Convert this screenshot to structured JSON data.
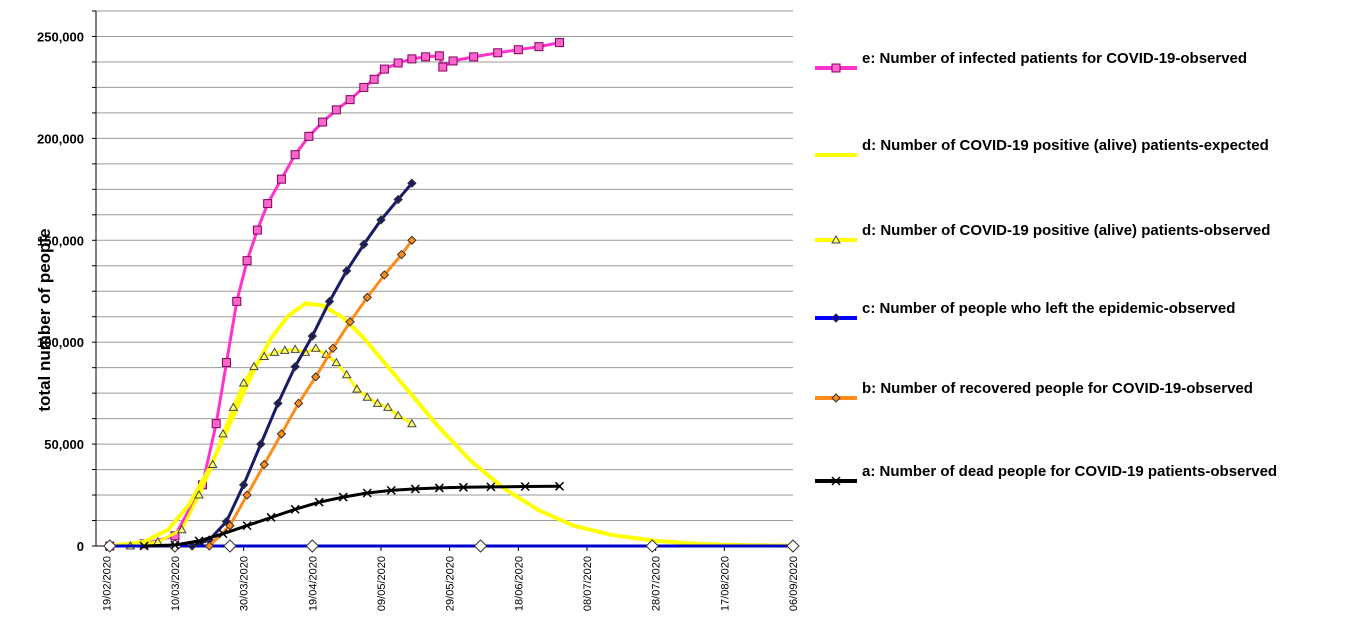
{
  "chart_data": {
    "type": "line",
    "xlabel": "",
    "ylabel": "total number of people",
    "ylim": [
      0,
      262500
    ],
    "xlim": [
      "2020-02-16",
      "2020-09-06"
    ],
    "grid": true,
    "legend_position": "right",
    "x_ticks": [
      "19/02/2020",
      "10/03/2020",
      "30/03/2020",
      "19/04/2020",
      "09/05/2020",
      "29/05/2020",
      "18/06/2020",
      "08/07/2020",
      "28/07/2020",
      "17/08/2020",
      "06/09/2020"
    ],
    "y_ticks": [
      "0",
      "50,000",
      "100,000",
      "150,000",
      "200,000",
      "250,000"
    ],
    "y_tick_values": [
      0,
      50000,
      100000,
      150000,
      200000,
      250000
    ],
    "series": [
      {
        "name": "e: Number of infected patients for COVID-19-observed",
        "color": "#ff33cc",
        "marker": "square",
        "x": [
          "2020-02-20",
          "2020-03-01",
          "2020-03-10",
          "2020-03-18",
          "2020-03-22",
          "2020-03-25",
          "2020-03-28",
          "2020-03-31",
          "2020-04-03",
          "2020-04-06",
          "2020-04-10",
          "2020-04-14",
          "2020-04-18",
          "2020-04-22",
          "2020-04-26",
          "2020-04-30",
          "2020-05-04",
          "2020-05-07",
          "2020-05-10",
          "2020-05-14",
          "2020-05-18",
          "2020-05-22",
          "2020-05-26",
          "2020-05-27",
          "2020-05-30",
          "2020-06-05",
          "2020-06-12",
          "2020-06-18",
          "2020-06-24",
          "2020-06-30"
        ],
        "y": [
          0,
          1000,
          5000,
          30000,
          60000,
          90000,
          120000,
          140000,
          155000,
          168000,
          180000,
          192000,
          201000,
          208000,
          214000,
          219000,
          225000,
          229000,
          234000,
          237000,
          239000,
          240000,
          240500,
          235000,
          238000,
          240000,
          242000,
          243500,
          245000,
          247000
        ]
      },
      {
        "name": "d: Number of COVID-19 positive (alive) patients-expected",
        "color": "#ffff00",
        "marker": "none",
        "x": [
          "2020-02-20",
          "2020-03-01",
          "2020-03-08",
          "2020-03-14",
          "2020-03-20",
          "2020-03-26",
          "2020-04-01",
          "2020-04-07",
          "2020-04-12",
          "2020-04-17",
          "2020-04-22",
          "2020-04-28",
          "2020-05-04",
          "2020-05-10",
          "2020-05-18",
          "2020-05-26",
          "2020-06-04",
          "2020-06-14",
          "2020-06-24",
          "2020-07-04",
          "2020-07-15",
          "2020-07-28",
          "2020-08-10",
          "2020-08-24",
          "2020-09-06"
        ],
        "y": [
          0,
          2000,
          8000,
          20000,
          38000,
          60000,
          83000,
          102000,
          113000,
          119000,
          118000,
          112000,
          102000,
          90000,
          74000,
          58000,
          42000,
          28000,
          17500,
          10000,
          5500,
          2500,
          1000,
          400,
          100
        ]
      },
      {
        "name": "d: Number of COVID-19 positive (alive) patients-observed",
        "color": "#ffff00",
        "marker": "triangle",
        "x": [
          "2020-02-26",
          "2020-03-05",
          "2020-03-12",
          "2020-03-17",
          "2020-03-21",
          "2020-03-24",
          "2020-03-27",
          "2020-03-30",
          "2020-04-02",
          "2020-04-05",
          "2020-04-08",
          "2020-04-11",
          "2020-04-14",
          "2020-04-17",
          "2020-04-20",
          "2020-04-23",
          "2020-04-26",
          "2020-04-29",
          "2020-05-02",
          "2020-05-05",
          "2020-05-08",
          "2020-05-11",
          "2020-05-14",
          "2020-05-18"
        ],
        "y": [
          0,
          2000,
          8000,
          25000,
          40000,
          55000,
          68000,
          80000,
          88000,
          93000,
          95000,
          96000,
          96500,
          95000,
          97000,
          94000,
          90000,
          84000,
          77000,
          73000,
          70000,
          68000,
          64000,
          60000
        ]
      },
      {
        "name": "c: Number of people who left the epidemic-observed",
        "color": "#0000cc",
        "marker": "diamond",
        "x": [
          "2020-02-20",
          "2020-03-10",
          "2020-03-26",
          "2020-04-19",
          "2020-06-07",
          "2020-07-27",
          "2020-09-06"
        ],
        "y": [
          0,
          0,
          0,
          0,
          0,
          0,
          0
        ]
      },
      {
        "name": "c: Number of people who left the epidemic-observed",
        "color": "#1a1a66",
        "marker": "diamond",
        "x": [
          "2020-03-15",
          "2020-03-20",
          "2020-03-25",
          "2020-03-30",
          "2020-04-04",
          "2020-04-09",
          "2020-04-14",
          "2020-04-19",
          "2020-04-24",
          "2020-04-29",
          "2020-05-04",
          "2020-05-09",
          "2020-05-14",
          "2020-05-18"
        ],
        "y": [
          0,
          3000,
          12000,
          30000,
          50000,
          70000,
          88000,
          103000,
          120000,
          135000,
          148000,
          160000,
          170000,
          178000
        ]
      },
      {
        "name": "b: Number of recovered people for COVID-19-observed",
        "color": "#ff8c1a",
        "marker": "diamond",
        "x": [
          "2020-03-20",
          "2020-03-26",
          "2020-03-31",
          "2020-04-05",
          "2020-04-10",
          "2020-04-15",
          "2020-04-20",
          "2020-04-25",
          "2020-04-30",
          "2020-05-05",
          "2020-05-10",
          "2020-05-15",
          "2020-05-18"
        ],
        "y": [
          0,
          10000,
          25000,
          40000,
          55000,
          70000,
          83000,
          97000,
          110000,
          122000,
          133000,
          143000,
          150000
        ]
      },
      {
        "name": "a: Number of dead people for COVID-19 patients-observed",
        "color": "#000000",
        "marker": "cross",
        "x": [
          "2020-03-01",
          "2020-03-10",
          "2020-03-17",
          "2020-03-24",
          "2020-03-31",
          "2020-04-07",
          "2020-04-14",
          "2020-04-21",
          "2020-04-28",
          "2020-05-05",
          "2020-05-12",
          "2020-05-19",
          "2020-05-26",
          "2020-06-02",
          "2020-06-10",
          "2020-06-20",
          "2020-06-30"
        ],
        "y": [
          0,
          500,
          2500,
          6000,
          10000,
          14000,
          18000,
          21500,
          24000,
          26000,
          27300,
          28000,
          28500,
          28800,
          29000,
          29200,
          29300
        ]
      }
    ]
  }
}
